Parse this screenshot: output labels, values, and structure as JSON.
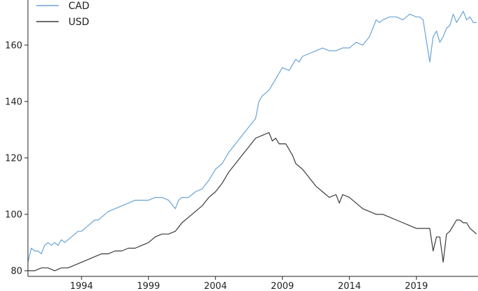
{
  "chart_data": {
    "type": "line",
    "title": "",
    "xlabel": "",
    "ylabel": "",
    "xlim": [
      1990.0,
      2023.6
    ],
    "ylim": [
      78,
      176
    ],
    "x_ticks": [
      1994,
      1999,
      2004,
      2009,
      2014,
      2019
    ],
    "x_tick_labels": [
      "1994",
      "1999",
      "2004",
      "2009",
      "2014",
      "2019"
    ],
    "y_ticks": [
      80,
      100,
      120,
      140,
      160
    ],
    "y_tick_labels": [
      "80",
      "100",
      "120",
      "140",
      "160"
    ],
    "grid": false,
    "legend": {
      "placement": "top-left"
    },
    "series": [
      {
        "name": "CAD",
        "color": "#6aa3d5",
        "x": [
          1990.0,
          1990.25,
          1990.5,
          1990.75,
          1991.0,
          1991.25,
          1991.5,
          1991.75,
          1992.0,
          1992.25,
          1992.5,
          1992.75,
          1993.0,
          1993.25,
          1993.5,
          1993.75,
          1994.0,
          1994.25,
          1994.5,
          1994.75,
          1995.0,
          1995.25,
          1995.5,
          1995.75,
          1996.0,
          1996.5,
          1997.0,
          1997.5,
          1998.0,
          1998.5,
          1999.0,
          1999.5,
          2000.0,
          2000.5,
          2001.0,
          2001.25,
          2001.5,
          2002.0,
          2002.5,
          2003.0,
          2003.5,
          2004.0,
          2004.5,
          2005.0,
          2005.5,
          2006.0,
          2006.5,
          2007.0,
          2007.25,
          2007.5,
          2008.0,
          2008.5,
          2009.0,
          2009.5,
          2010.0,
          2010.25,
          2010.5,
          2011.0,
          2011.5,
          2012.0,
          2012.5,
          2013.0,
          2013.5,
          2014.0,
          2014.5,
          2015.0,
          2015.5,
          2016.0,
          2016.25,
          2016.5,
          2017.0,
          2017.5,
          2018.0,
          2018.5,
          2019.0,
          2019.25,
          2019.5,
          2020.0,
          2020.25,
          2020.5,
          2020.75,
          2021.0,
          2021.25,
          2021.5,
          2021.75,
          2022.0,
          2022.25,
          2022.5,
          2022.75,
          2023.0,
          2023.25,
          2023.5
        ],
        "values": [
          83,
          88,
          87,
          87,
          86,
          89,
          90,
          89,
          90,
          89,
          91,
          90,
          91,
          92,
          93,
          94,
          94,
          95,
          96,
          97,
          98,
          98,
          99,
          100,
          101,
          102,
          103,
          104,
          105,
          105,
          105,
          106,
          106,
          105,
          102,
          105,
          106,
          106,
          108,
          109,
          112,
          116,
          118,
          122,
          125,
          128,
          131,
          134,
          140,
          142,
          144,
          148,
          152,
          151,
          155,
          154,
          156,
          157,
          158,
          159,
          158,
          158,
          159,
          159,
          161,
          160,
          163,
          169,
          168,
          169,
          170,
          170,
          169,
          171,
          170,
          170,
          169,
          154,
          163,
          165,
          161,
          163,
          166,
          167,
          171,
          168,
          170,
          172,
          169,
          170,
          168,
          168
        ]
      },
      {
        "name": "USD",
        "color": "#3a3a3a",
        "x": [
          1990.0,
          1990.5,
          1991.0,
          1991.5,
          1992.0,
          1992.5,
          1993.0,
          1993.5,
          1994.0,
          1994.5,
          1995.0,
          1995.5,
          1996.0,
          1996.5,
          1997.0,
          1997.5,
          1998.0,
          1998.5,
          1999.0,
          1999.5,
          2000.0,
          2000.5,
          2001.0,
          2001.5,
          2002.0,
          2002.5,
          2003.0,
          2003.5,
          2004.0,
          2004.5,
          2005.0,
          2005.5,
          2006.0,
          2006.5,
          2007.0,
          2007.5,
          2008.0,
          2008.25,
          2008.5,
          2008.75,
          2009.0,
          2009.25,
          2009.5,
          2009.75,
          2010.0,
          2010.5,
          2011.0,
          2011.5,
          2012.0,
          2012.5,
          2013.0,
          2013.25,
          2013.5,
          2014.0,
          2014.5,
          2015.0,
          2015.5,
          2016.0,
          2016.5,
          2017.0,
          2017.5,
          2018.0,
          2018.5,
          2019.0,
          2019.5,
          2020.0,
          2020.25,
          2020.5,
          2020.75,
          2021.0,
          2021.25,
          2021.5,
          2021.75,
          2022.0,
          2022.25,
          2022.5,
          2022.75,
          2023.0,
          2023.25,
          2023.5
        ],
        "values": [
          80,
          80,
          81,
          81,
          80,
          81,
          81,
          82,
          83,
          84,
          85,
          86,
          86,
          87,
          87,
          88,
          88,
          89,
          90,
          92,
          93,
          93,
          94,
          97,
          99,
          101,
          103,
          106,
          108,
          111,
          115,
          118,
          121,
          124,
          127,
          128,
          129,
          126,
          127,
          125,
          125,
          125,
          123,
          121,
          118,
          116,
          113,
          110,
          108,
          106,
          107,
          104,
          107,
          106,
          104,
          102,
          101,
          100,
          100,
          99,
          98,
          97,
          96,
          95,
          95,
          95,
          87,
          92,
          92,
          83,
          93,
          94,
          96,
          98,
          98,
          97,
          97,
          95,
          94,
          93
        ]
      }
    ]
  }
}
